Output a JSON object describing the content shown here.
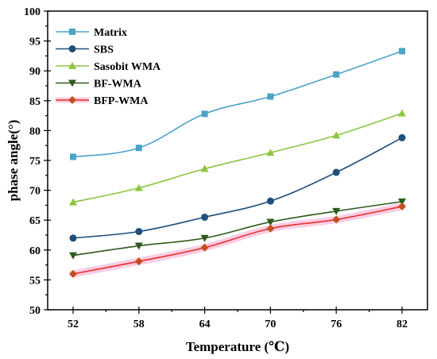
{
  "chart_data": {
    "type": "line",
    "title": "",
    "xlabel": "Temperature (℃)",
    "ylabel": "phase angle(°)",
    "x": [
      52,
      58,
      64,
      70,
      76,
      82
    ],
    "xticks": [
      "52",
      "58",
      "64",
      "70",
      "76",
      "82"
    ],
    "ylim": [
      50,
      100
    ],
    "yticks": [
      "50",
      "55",
      "60",
      "65",
      "70",
      "75",
      "80",
      "85",
      "90",
      "95",
      "100"
    ],
    "grid": false,
    "legend_position": "top-left",
    "series": [
      {
        "name": "Matrix",
        "values": [
          75.6,
          77.1,
          82.8,
          85.7,
          89.4,
          93.3
        ],
        "color": "#4ba3c7",
        "marker": "square"
      },
      {
        "name": "SBS",
        "values": [
          62.0,
          63.1,
          65.5,
          68.2,
          73.0,
          78.8
        ],
        "color": "#1f4e79",
        "marker": "circle"
      },
      {
        "name": "Sasobit WMA",
        "values": [
          68.0,
          70.4,
          73.6,
          76.3,
          79.2,
          82.9
        ],
        "color": "#8cc63f",
        "marker": "triangle-up"
      },
      {
        "name": "BF-WMA",
        "values": [
          59.1,
          60.7,
          62.0,
          64.7,
          66.5,
          68.1
        ],
        "color": "#2e5a1c",
        "marker": "triangle-down"
      },
      {
        "name": "BFP-WMA",
        "values": [
          56.0,
          58.1,
          60.4,
          63.6,
          65.1,
          67.3
        ],
        "color": "#e8302a",
        "shadow_color": "#f7b8d8",
        "marker_color": "#c0501f",
        "marker": "diamond"
      }
    ]
  }
}
